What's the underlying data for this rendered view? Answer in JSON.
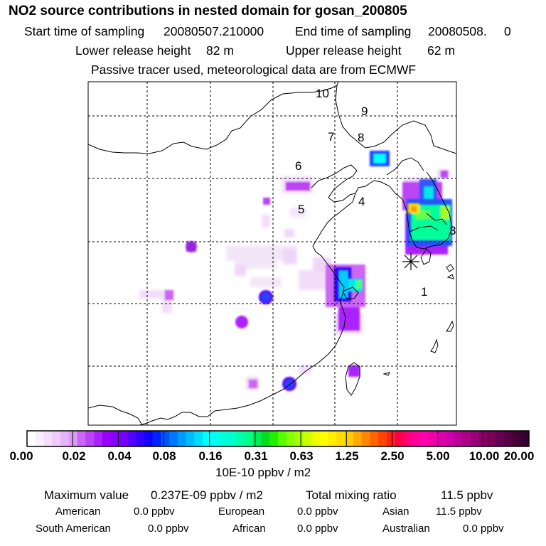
{
  "header": {
    "title": "NO2 source contributions in nested domain for gosan_200805",
    "start_label": "Start time of sampling",
    "start_value": "20080507.210000",
    "end_label": "End time of sampling",
    "end_value": "20080508.     0",
    "lower_label": "Lower release height",
    "lower_value": "82 m",
    "upper_label": "Upper release height",
    "upper_value": "62 m",
    "tracer_note": "Passive tracer used, meteorological data are from ECMWF"
  },
  "map": {
    "region_labels": [
      "1",
      "3",
      "4",
      "5",
      "6",
      "7",
      "8",
      "9",
      "10"
    ],
    "receptor_marker": "star-marker",
    "colors": {
      "coast": "#000000",
      "grid": "#000000",
      "lowest": "#f0d8f8",
      "magenta": "#cc22ff",
      "purple": "#8800ff",
      "blue": "#2244ff",
      "cyan": "#00e8e8",
      "green": "#00ff88",
      "yellow": "#ffff00",
      "orange": "#ffaa00"
    }
  },
  "colorbar": {
    "ticks": [
      "0.00",
      "0.02",
      "0.04",
      "0.08",
      "0.16",
      "0.31",
      "0.63",
      "1.25",
      "2.50",
      "5.00",
      "10.00",
      "20.00"
    ],
    "unit": "10E-10 ppbv / m2",
    "swatches": [
      "#ffffff",
      "#fbeefe",
      "#f5ddfc",
      "#eeccfa",
      "#e6b2f8",
      "#dc99f6",
      "#cc66f4",
      "#bb44f2",
      "#aa22ff",
      "#9900ff",
      "#8800ff",
      "#7700ff",
      "#5500ff",
      "#3300ff",
      "#1100ff",
      "#0022ff",
      "#0055ff",
      "#0077ff",
      "#0099ff",
      "#00bbff",
      "#00ddff",
      "#00ffff",
      "#00ffee",
      "#00ffdd",
      "#00ffcc",
      "#00ffaa",
      "#00ff88",
      "#00ee55",
      "#00dd22",
      "#22ee00",
      "#55ff00",
      "#88ff00",
      "#aaff00",
      "#ccff00",
      "#eeff00",
      "#ffff00",
      "#ffee00",
      "#ffdd00",
      "#ffcc00",
      "#ffaa00",
      "#ff8800",
      "#ff6600",
      "#ff4400",
      "#ff2222",
      "#ff0044",
      "#ff0077",
      "#ff0099",
      "#ff00aa",
      "#ee00aa",
      "#dd00aa",
      "#cc00aa",
      "#bb0099",
      "#aa0088",
      "#990077",
      "#880066",
      "#770055",
      "#660055",
      "#550044",
      "#440033",
      "#330033"
    ]
  },
  "summary": {
    "max_label": "Maximum value",
    "max_value": "0.237E-09 ppbv / m2",
    "total_label": "Total mixing ratio",
    "total_value": "11.5 ppbv",
    "american_label": "American",
    "american_value": "0.0 ppbv",
    "european_label": "European",
    "european_value": "0.0 ppbv",
    "asian_label": "Asian",
    "asian_value": "11.5 ppbv",
    "south_american_label": "South American",
    "south_american_value": "0.0 ppbv",
    "african_label": "African",
    "african_value": "0.0 ppbv",
    "australian_label": "Australian",
    "australian_value": "0.0 ppbv"
  }
}
